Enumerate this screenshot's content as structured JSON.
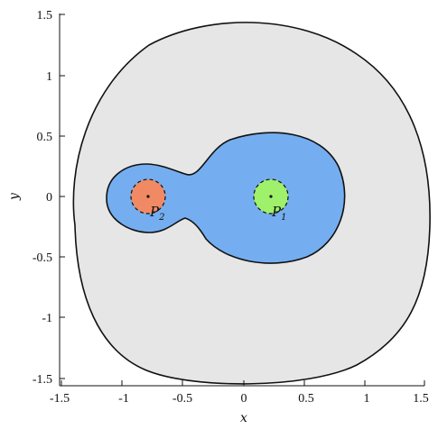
{
  "figure": {
    "axes": {
      "x_label": "x",
      "y_label": "y",
      "x_range": [
        -1.5,
        1.5
      ],
      "y_range": [
        -1.5,
        1.5
      ],
      "x_ticks": [
        "-1.5",
        "-1",
        "-0.5",
        "0",
        "0.5",
        "1",
        "1.5"
      ],
      "y_ticks": [
        "1.5",
        "1",
        "0.5",
        "0",
        "-0.5",
        "-1",
        "-1.5"
      ]
    },
    "points": [
      {
        "label": "P",
        "subscript": "1",
        "x": 0.2,
        "y": 0.0,
        "fill": "#9ff06a"
      },
      {
        "label": "P",
        "subscript": "2",
        "x": -0.8,
        "y": 0.0,
        "fill": "#f08a64"
      }
    ],
    "colors": {
      "outer_region": "#e6e6e6",
      "inner_region": "#74aef0",
      "outline": "#111111"
    }
  }
}
